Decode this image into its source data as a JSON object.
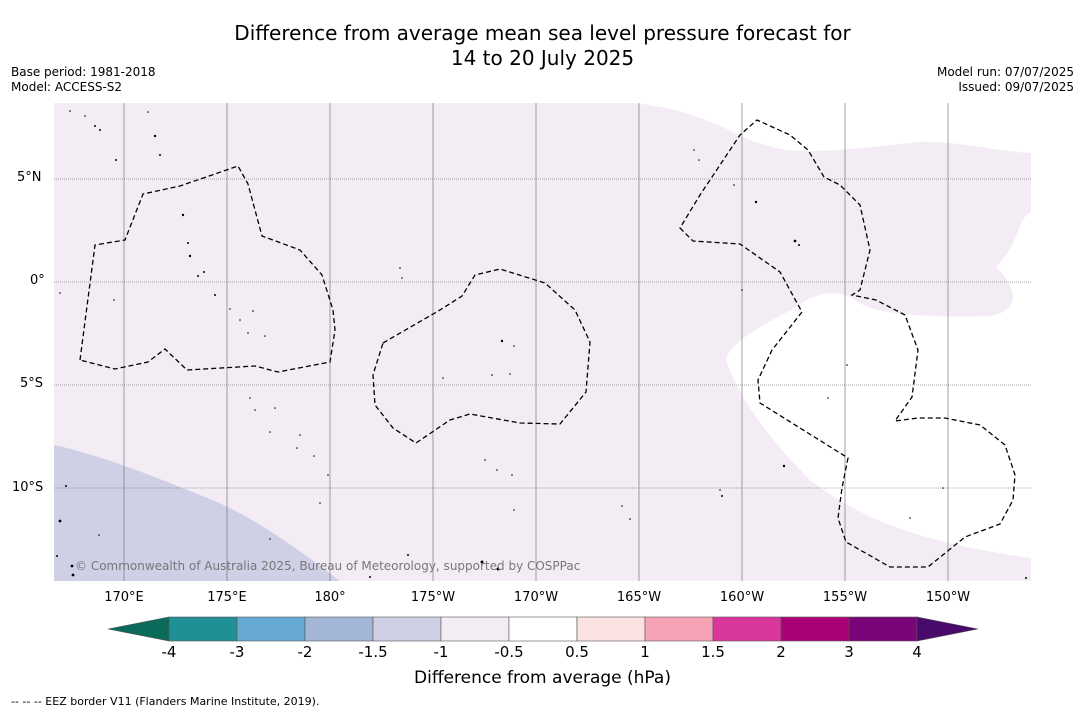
{
  "title": {
    "line1": "Difference from average mean sea level pressure forecast for",
    "line2": "14 to 20 July 2025"
  },
  "meta": {
    "base_period": "Base period: 1981-2018",
    "model": "Model: ACCESS-S2",
    "model_run": "Model run: 07/07/2025",
    "issued": "Issued: 09/07/2025"
  },
  "copyright": "© Commonwealth of Australia 2025, Bureau of Meteorology, supported by COSPPac",
  "lat_labels": [
    "5°N",
    "0°",
    "5°S",
    "10°S"
  ],
  "lon_labels": [
    "170°E",
    "175°E",
    "180°",
    "175°W",
    "170°W",
    "165°W",
    "160°W",
    "155°W",
    "150°W"
  ],
  "colorbar": {
    "title": "Difference from average (hPa)",
    "ticks": [
      "-4",
      "-3",
      "-2",
      "-1.5",
      "-1",
      "-0.5",
      "0.5",
      "1",
      "1.5",
      "2",
      "3",
      "4"
    ],
    "colors": {
      "below_min": "#0b6b5a",
      "bins": [
        "#1f9196",
        "#66a9d2",
        "#a4b6d6",
        "#cfd0e5",
        "#f3ecf5",
        "#ffffff",
        "#fde2e2",
        "#f7a3b6",
        "#d9379e",
        "#aa0076",
        "#7a0479"
      ],
      "above_max": "#4a0a6b"
    }
  },
  "footnote": "--  --  -- EEZ border V11 (Flanders Marine Institute, 2019)."
}
